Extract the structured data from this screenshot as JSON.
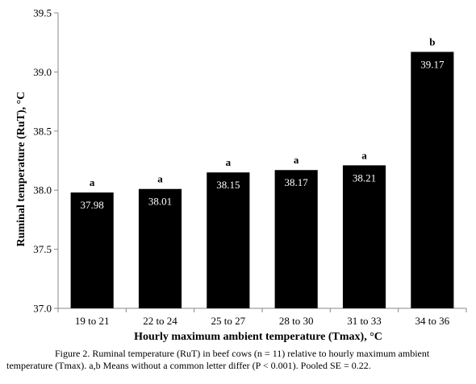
{
  "chart_data": {
    "type": "bar",
    "title": "",
    "xlabel": "Hourly maximum ambient temperature (Tmax), °C",
    "ylabel": "Ruminal temperature (RuT), °C",
    "categories": [
      "19 to 21",
      "22 to 24",
      "25 to 27",
      "28 to 30",
      "31 to 33",
      "34 to 36"
    ],
    "values": [
      37.98,
      38.01,
      38.15,
      38.17,
      38.21,
      39.17
    ],
    "value_labels": [
      "37.98",
      "38.01",
      "38.15",
      "38.17",
      "38.21",
      "39.17"
    ],
    "significance_letters": [
      "a",
      "a",
      "a",
      "a",
      "a",
      "b"
    ],
    "ylim": [
      37.0,
      39.5
    ],
    "yticks": [
      "37.0",
      "37.5",
      "38.0",
      "38.5",
      "39.0",
      "39.5"
    ],
    "ytick_values": [
      37.0,
      37.5,
      38.0,
      38.5,
      39.0,
      39.5
    ],
    "grid": false,
    "legend": "none",
    "bar_color": "#000000",
    "label_color": "#ffffff"
  },
  "caption": {
    "line1": "Figure 2.  Ruminal temperature (RuT) in beef cows (n = 11) relative to hourly maximum ambient",
    "line2": "temperature (Tmax).  a,b Means without a common letter differ (P < 0.001).  Pooled SE = 0.22."
  }
}
